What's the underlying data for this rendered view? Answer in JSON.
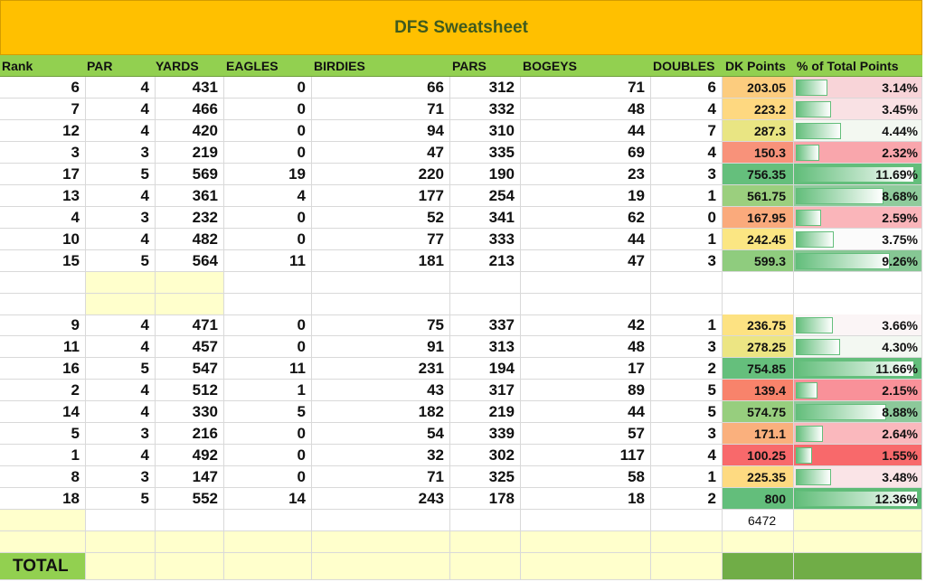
{
  "title": "DFS Sweatsheet",
  "headers": [
    "Rank",
    "PAR",
    "YARDS",
    "EAGLES",
    "BIRDIES",
    "PARS",
    "BOGEYS",
    "DOUBLES",
    "DK Points",
    "% of Total Points"
  ],
  "rows_group1": [
    {
      "rank": "6",
      "par": "4",
      "yards": "431",
      "eagles": "0",
      "birdies": "66",
      "pars": "312",
      "bogeys": "71",
      "doubles": "6",
      "dk": "203.05",
      "dk_color": "#FCCC7E",
      "pct": "3.14%",
      "pct_fill": 0.26,
      "pct_color": "#F8D4D8"
    },
    {
      "rank": "7",
      "par": "4",
      "yards": "466",
      "eagles": "0",
      "birdies": "71",
      "pars": "332",
      "bogeys": "48",
      "doubles": "4",
      "dk": "223.2",
      "dk_color": "#FED880",
      "pct": "3.45%",
      "pct_fill": 0.29,
      "pct_color": "#F9E1E4"
    },
    {
      "rank": "12",
      "par": "4",
      "yards": "420",
      "eagles": "0",
      "birdies": "94",
      "pars": "310",
      "bogeys": "44",
      "doubles": "7",
      "dk": "287.3",
      "dk_color": "#E9E583",
      "pct": "4.44%",
      "pct_fill": 0.37,
      "pct_color": "#F3F8F1"
    },
    {
      "rank": "3",
      "par": "3",
      "yards": "219",
      "eagles": "0",
      "birdies": "47",
      "pars": "335",
      "bogeys": "69",
      "doubles": "4",
      "dk": "150.3",
      "dk_color": "#F8927A",
      "pct": "2.32%",
      "pct_fill": 0.19,
      "pct_color": "#F9A6AC"
    },
    {
      "rank": "17",
      "par": "5",
      "yards": "569",
      "eagles": "19",
      "birdies": "220",
      "pars": "190",
      "bogeys": "23",
      "doubles": "3",
      "dk": "756.35",
      "dk_color": "#65BF7C",
      "pct": "11.69%",
      "pct_fill": 0.97,
      "pct_color": "#63BE7B"
    },
    {
      "rank": "13",
      "par": "4",
      "yards": "361",
      "eagles": "4",
      "birdies": "177",
      "pars": "254",
      "bogeys": "19",
      "doubles": "1",
      "dk": "561.75",
      "dk_color": "#9BCF7E",
      "pct": "8.68%",
      "pct_fill": 0.72,
      "pct_color": "#8FCB9C"
    },
    {
      "rank": "4",
      "par": "3",
      "yards": "232",
      "eagles": "0",
      "birdies": "52",
      "pars": "341",
      "bogeys": "62",
      "doubles": "0",
      "dk": "167.95",
      "dk_color": "#FAAA7C",
      "pct": "2.59%",
      "pct_fill": 0.21,
      "pct_color": "#FAB5BA"
    },
    {
      "rank": "10",
      "par": "4",
      "yards": "482",
      "eagles": "0",
      "birdies": "77",
      "pars": "333",
      "bogeys": "44",
      "doubles": "1",
      "dk": "242.45",
      "dk_color": "#FBE683",
      "pct": "3.75%",
      "pct_fill": 0.31,
      "pct_color": "#FBFBFB"
    },
    {
      "rank": "15",
      "par": "5",
      "yards": "564",
      "eagles": "11",
      "birdies": "181",
      "pars": "213",
      "bogeys": "47",
      "doubles": "3",
      "dk": "599.3",
      "dk_color": "#8FCC7E",
      "pct": "9.26%",
      "pct_fill": 0.77,
      "pct_color": "#86C794"
    }
  ],
  "rows_group2": [
    {
      "rank": "9",
      "par": "4",
      "yards": "471",
      "eagles": "0",
      "birdies": "75",
      "pars": "337",
      "bogeys": "42",
      "doubles": "1",
      "dk": "236.75",
      "dk_color": "#FDE282",
      "pct": "3.66%",
      "pct_fill": 0.3,
      "pct_color": "#FBF5F6"
    },
    {
      "rank": "11",
      "par": "4",
      "yards": "457",
      "eagles": "0",
      "birdies": "91",
      "pars": "313",
      "bogeys": "48",
      "doubles": "3",
      "dk": "278.25",
      "dk_color": "#ECE583",
      "pct": "4.30%",
      "pct_fill": 0.36,
      "pct_color": "#F3F8F2"
    },
    {
      "rank": "16",
      "par": "5",
      "yards": "547",
      "eagles": "11",
      "birdies": "231",
      "pars": "194",
      "bogeys": "17",
      "doubles": "2",
      "dk": "754.85",
      "dk_color": "#65BF7C",
      "pct": "11.66%",
      "pct_fill": 0.97,
      "pct_color": "#63BE7B"
    },
    {
      "rank": "2",
      "par": "4",
      "yards": "512",
      "eagles": "1",
      "birdies": "43",
      "pars": "317",
      "bogeys": "89",
      "doubles": "5",
      "dk": "139.4",
      "dk_color": "#F8836B",
      "pct": "2.15%",
      "pct_fill": 0.18,
      "pct_color": "#F99199"
    },
    {
      "rank": "14",
      "par": "4",
      "yards": "330",
      "eagles": "5",
      "birdies": "182",
      "pars": "219",
      "bogeys": "44",
      "doubles": "5",
      "dk": "574.75",
      "dk_color": "#97CE7E",
      "pct": "8.88%",
      "pct_fill": 0.74,
      "pct_color": "#8CC99A"
    },
    {
      "rank": "5",
      "par": "3",
      "yards": "216",
      "eagles": "0",
      "birdies": "54",
      "pars": "339",
      "bogeys": "57",
      "doubles": "3",
      "dk": "171.1",
      "dk_color": "#FAB07D",
      "pct": "2.64%",
      "pct_fill": 0.22,
      "pct_color": "#FAB8BD"
    },
    {
      "rank": "1",
      "par": "4",
      "yards": "492",
      "eagles": "0",
      "birdies": "32",
      "pars": "302",
      "bogeys": "117",
      "doubles": "4",
      "dk": "100.25",
      "dk_color": "#F8696B",
      "pct": "1.55%",
      "pct_fill": 0.13,
      "pct_color": "#F8696B"
    },
    {
      "rank": "8",
      "par": "3",
      "yards": "147",
      "eagles": "0",
      "birdies": "71",
      "pars": "325",
      "bogeys": "58",
      "doubles": "1",
      "dk": "225.35",
      "dk_color": "#FEDA81",
      "pct": "3.48%",
      "pct_fill": 0.29,
      "pct_color": "#FAE4E7"
    },
    {
      "rank": "18",
      "par": "5",
      "yards": "552",
      "eagles": "14",
      "birdies": "243",
      "pars": "178",
      "bogeys": "18",
      "doubles": "2",
      "dk": "800",
      "dk_color": "#63BE7B",
      "pct": "12.36%",
      "pct_fill": 1.0,
      "pct_color": "#5DBB76"
    }
  ],
  "dk_total": "6472",
  "total_label": "TOTAL"
}
